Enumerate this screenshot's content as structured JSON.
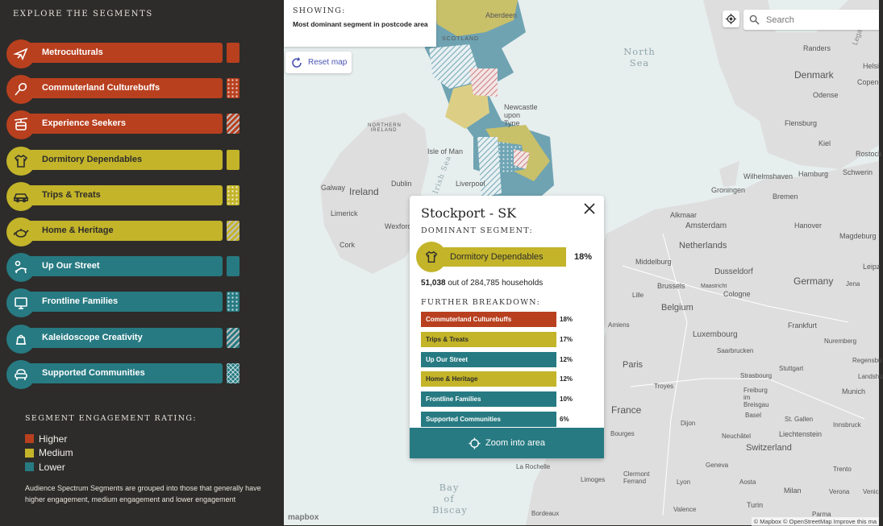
{
  "colors": {
    "higher": "#b8401f",
    "medium": "#c3b42a",
    "lower": "#277a82",
    "sidebar_bg": "#2d2c2a"
  },
  "sidebar": {
    "title": "EXPLORE THE SEGMENTS",
    "segments": [
      {
        "label": "Metroculturals",
        "level": "higher",
        "icon": "plane-icon",
        "pattern": "solid"
      },
      {
        "label": "Commuterland Culturebuffs",
        "level": "higher",
        "icon": "tennis-racket-icon",
        "pattern": "dots"
      },
      {
        "label": "Experience Seekers",
        "level": "higher",
        "icon": "cable-car-icon",
        "pattern": "stripes"
      },
      {
        "label": "Dormitory Dependables",
        "level": "medium",
        "icon": "tshirt-icon",
        "pattern": "solid"
      },
      {
        "label": "Trips & Treats",
        "level": "medium",
        "icon": "car-icon",
        "pattern": "dots"
      },
      {
        "label": "Home & Heritage",
        "level": "medium",
        "icon": "teapot-icon",
        "pattern": "stripes"
      },
      {
        "label": "Up Our Street",
        "level": "lower",
        "icon": "sunbed-icon",
        "pattern": "solid"
      },
      {
        "label": "Frontline Families",
        "level": "lower",
        "icon": "monitor-icon",
        "pattern": "dots"
      },
      {
        "label": "Kaleidoscope Creativity",
        "level": "lower",
        "icon": "kettle-icon",
        "pattern": "stripes"
      },
      {
        "label": "Supported Communities",
        "level": "lower",
        "icon": "armchair-icon",
        "pattern": "chevron"
      }
    ],
    "rating_title": "SEGMENT ENGAGEMENT RATING:",
    "legend": [
      {
        "label": "Higher",
        "color": "#b8401f"
      },
      {
        "label": "Medium",
        "color": "#c3b42a"
      },
      {
        "label": "Lower",
        "color": "#277a82"
      }
    ],
    "note": "Audience Spectrum Segments are grouped into those that generally have higher engagement, medium engagement and lower engagement"
  },
  "map": {
    "showing_title": "SHOWING:",
    "showing_value": "Most dominant segment in postcode area",
    "reset_label": "Reset map",
    "search_placeholder": "Search",
    "sea_labels": {
      "north_sea": "North Sea",
      "bay_of_biscay": "Bay of Biscay",
      "irish_sea": "Irish Sea"
    },
    "places": {
      "scotland": "SCOTLAND",
      "northern_ireland": "NORTHERN IRELAND",
      "ireland": "Ireland",
      "isle_of_man": "Isle of Man",
      "dublin": "Dublin",
      "galway": "Galway",
      "limerick": "Limerick",
      "cork": "Cork",
      "wexford": "Wexford",
      "aberdeen": "Aberdeen",
      "newcastle": "Newcastle upon Tyne",
      "liverpool": "Liverpool",
      "denmark": "Denmark",
      "odense": "Odense",
      "flensburg": "Flensburg",
      "kiel": "Kiel",
      "hamburg": "Hamburg",
      "wilhelmshaven": "Wilhelmshaven",
      "bremen": "Bremen",
      "groningen": "Groningen",
      "schwerin": "Schwerin",
      "rostock": "Rostock",
      "randers": "Randers",
      "copenhagen": "Copen",
      "helsi": "Helsi",
      "alkmaar": "Alkmaar",
      "amsterdam": "Amsterdam",
      "hanover": "Hanover",
      "magdeburg": "Magdeburg",
      "netherlands": "Netherlands",
      "middelburg": "Middelburg",
      "dusseldorf": "Dusseldorf",
      "germany": "Germany",
      "leipzig": "Leipz",
      "brussels": "Brussels",
      "maastricht": "Maastricht",
      "cologne": "Cologne",
      "jena": "Jena",
      "lille": "Lille",
      "belgium": "Belgium",
      "amiens": "Amiens",
      "luxembourg": "Luxembourg",
      "frankfurt": "Frankfurt",
      "saarbrucken": "Saarbrucken",
      "nuremberg": "Nuremberg",
      "paris": "Paris",
      "stuttgart": "Stuttgart",
      "strasbourg": "Strasbourg",
      "regensburg": "Regensbu",
      "troyes": "Troyes",
      "freiburg": "Freiburg im Breisgau",
      "landshut": "Landshu",
      "france": "France",
      "basel": "Basel",
      "munich": "Munich",
      "dijon": "Dijon",
      "st_gallen": "St. Gallen",
      "liechtenstein": "Liechtenstein",
      "innsbruck": "Innsbruck",
      "bourges": "Bourges",
      "neuchatel": "Neuchâtel",
      "switzerland": "Switzerland",
      "geneva": "Geneva",
      "la_rochelle": "La Rochelle",
      "limoges": "Limoges",
      "clermont_ferrand": "Clermont Ferrand",
      "lyon": "Lyon",
      "aosta": "Aosta",
      "milan": "Milan",
      "verona": "Verona",
      "venice": "Venic",
      "trento": "Trento",
      "turin": "Turin",
      "valence": "Valence",
      "bordeaux": "Bordeaux",
      "parma": "Parma",
      "legat": "Legat"
    },
    "mapbox_logo": "mapbox",
    "attribution": "© Mapbox © OpenStreetMap Improve this ma"
  },
  "popup": {
    "title": "Stockport - SK",
    "dominant_label": "DOMINANT SEGMENT:",
    "dominant_segment": "Dormitory Dependables",
    "dominant_pct": "18%",
    "households_count": "51,038",
    "households_text": "out of 284,785 households",
    "breakdown_label": "FURTHER BREAKDOWN:",
    "breakdown": [
      {
        "label": "Commuterland Culturebuffs",
        "pct": "18%",
        "value": 18,
        "level": "higher"
      },
      {
        "label": "Trips & Treats",
        "pct": "17%",
        "value": 17,
        "level": "medium"
      },
      {
        "label": "Up Our Street",
        "pct": "12%",
        "value": 12,
        "level": "lower"
      },
      {
        "label": "Home & Heritage",
        "pct": "12%",
        "value": 12,
        "level": "medium"
      },
      {
        "label": "Frontline Families",
        "pct": "10%",
        "value": 10,
        "level": "lower"
      },
      {
        "label": "Supported Communities",
        "pct": "6%",
        "value": 6,
        "level": "lower"
      }
    ],
    "zoom_label": "Zoom into area"
  }
}
